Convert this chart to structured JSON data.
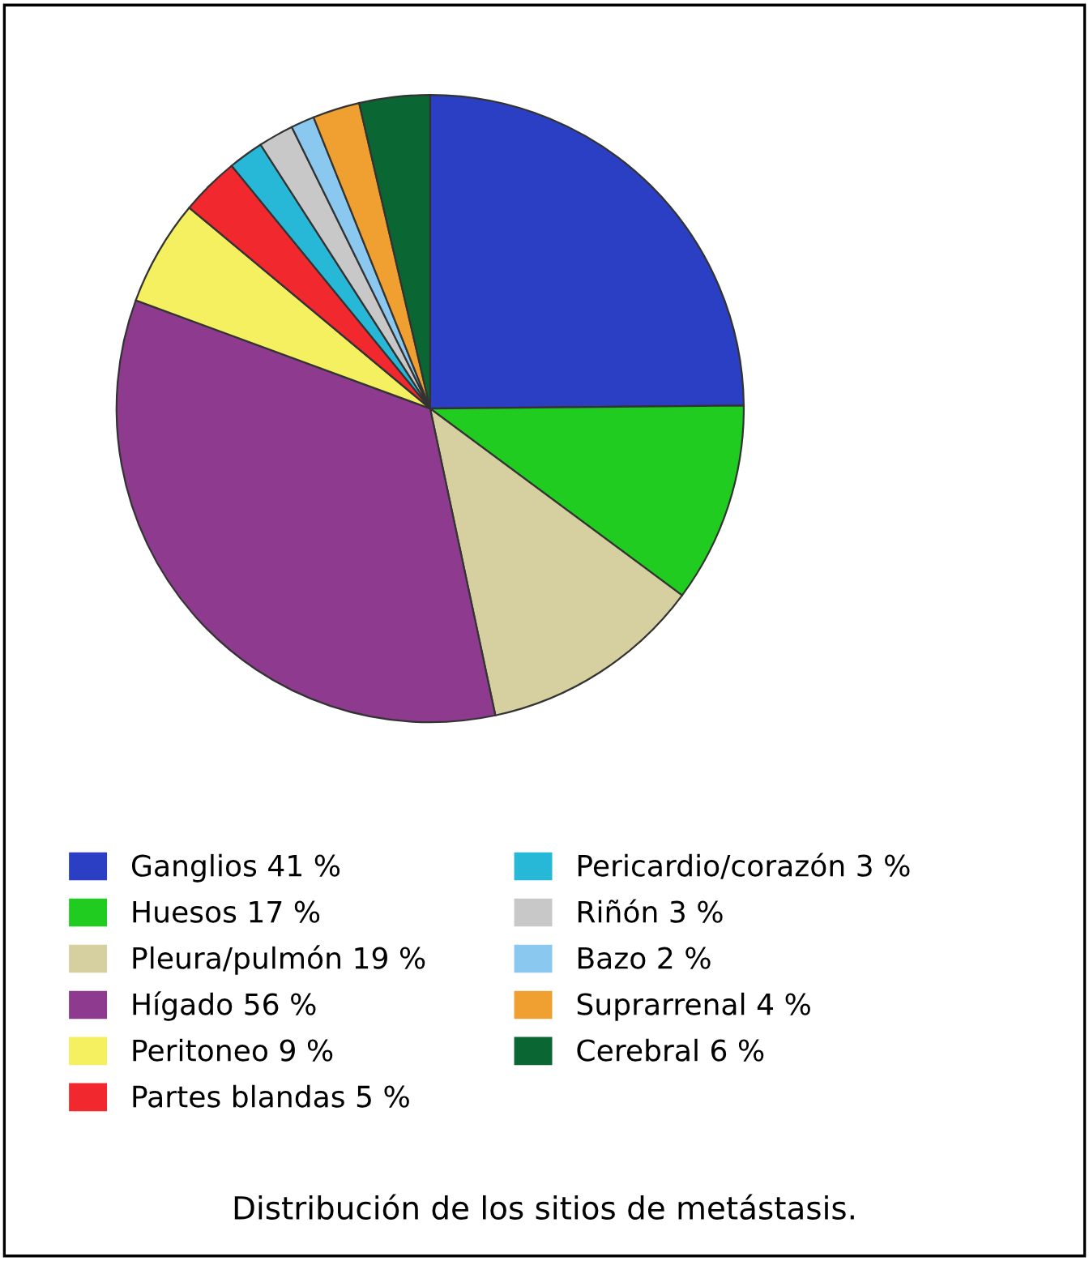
{
  "chart_data": {
    "type": "pie",
    "title": "Distribución de los sitios de metástasis.",
    "categories": [
      "Ganglios 41 %",
      "Huesos 17 %",
      "Pleura/pulmón 19 %",
      "Hígado 56 %",
      "Peritoneo 9 %",
      "Partes blandas 5 %",
      "Pericardio/corazón 3 %",
      "Riñón 3 %",
      "Bazo 2 %",
      "Suprarrenal 4 %",
      "Cerebral 6 %"
    ],
    "values": [
      41,
      17,
      19,
      56,
      9,
      5,
      3,
      3,
      2,
      4,
      6
    ],
    "colors": [
      "#2a3fc4",
      "#1fcc1f",
      "#d6cf9f",
      "#8e3a8e",
      "#f5f060",
      "#f2282f",
      "#27b8d8",
      "#c8c8c8",
      "#8ac8f0",
      "#f0a030",
      "#0a6632"
    ],
    "legend": "bottom"
  }
}
